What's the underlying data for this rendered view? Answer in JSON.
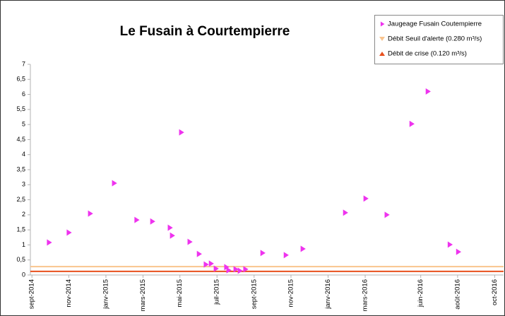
{
  "chart_data": {
    "type": "scatter",
    "title": "Le Fusain à Courtempierre",
    "series": [
      {
        "name": "Jaugeage  Fusain Coutempierre",
        "color": "#ee33ee",
        "x": [
          2014.743,
          2014.832,
          2014.928,
          2015.036,
          2015.137,
          2015.208,
          2015.287,
          2015.297,
          2015.338,
          2015.376,
          2015.418,
          2015.449,
          2015.472,
          2015.494,
          2015.541,
          2015.551,
          2015.583,
          2015.602,
          2015.627,
          2015.704,
          2015.809,
          2015.885,
          2016.076,
          2016.168,
          2016.263,
          2016.375,
          2016.448,
          2016.547,
          2016.585
        ],
        "values": [
          1.08,
          1.41,
          2.04,
          3.05,
          1.83,
          1.78,
          1.57,
          1.31,
          4.74,
          1.1,
          0.7,
          0.35,
          0.38,
          0.21,
          0.26,
          0.16,
          0.19,
          0.14,
          0.19,
          0.73,
          0.66,
          0.87,
          2.07,
          2.54,
          2.0,
          5.02,
          6.1,
          1.01,
          0.77
        ]
      }
    ],
    "reference_lines": [
      {
        "name": "Débit Seuil d'alerte (0.280 m³/s)",
        "color": "#f9c48e",
        "value": 0.28
      },
      {
        "name": "Débit de crise (0.120 m³/s)",
        "color": "#e8501e",
        "value": 0.12
      }
    ],
    "xlim": [
      2014.66,
      2016.79
    ],
    "xticks": [
      {
        "value": 2014.667,
        "label": "sept-2014"
      },
      {
        "value": 2014.833,
        "label": "nov-2014"
      },
      {
        "value": 2015.0,
        "label": "janv-2015"
      },
      {
        "value": 2015.167,
        "label": "mars-2015"
      },
      {
        "value": 2015.333,
        "label": "mai-2015"
      },
      {
        "value": 2015.5,
        "label": "juil-2015"
      },
      {
        "value": 2015.667,
        "label": "sept-2015"
      },
      {
        "value": 2015.833,
        "label": "nov-2015"
      },
      {
        "value": 2016.0,
        "label": "janv-2016"
      },
      {
        "value": 2016.167,
        "label": "mars-2016"
      },
      {
        "value": 2016.417,
        "label": "juin-2016"
      },
      {
        "value": 2016.583,
        "label": "août-2016"
      },
      {
        "value": 2016.75,
        "label": "oct-2016"
      }
    ],
    "ylim": [
      0,
      7
    ],
    "yticks": [
      0,
      {
        "value": 0.5,
        "label": "0,5"
      },
      1,
      {
        "value": 1.5,
        "label": "1,5"
      },
      2,
      {
        "value": 2.5,
        "label": "2,5"
      },
      3,
      {
        "value": 3.5,
        "label": "3,5"
      },
      4,
      {
        "value": 4.5,
        "label": "4,5"
      },
      5,
      {
        "value": 5.5,
        "label": "5,5"
      },
      6,
      {
        "value": 6.5,
        "label": "6,5"
      },
      7
    ],
    "grid": false,
    "legend": "top-right"
  }
}
